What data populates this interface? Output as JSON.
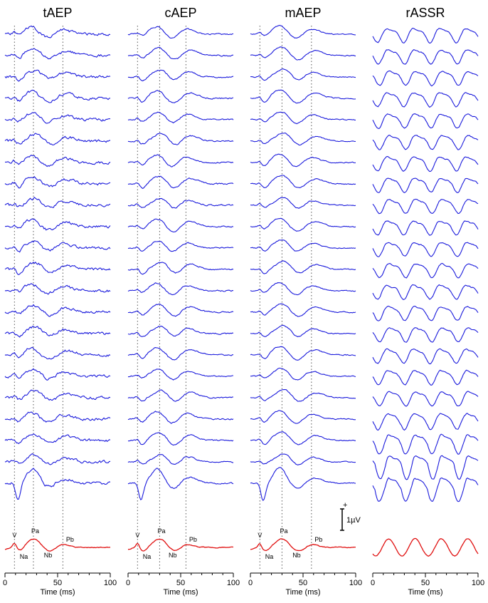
{
  "chart_data": [
    {
      "type": "line",
      "title": "tAEP",
      "xlabel": "Time (ms)",
      "xlim": [
        0,
        100
      ],
      "xticks": [
        "0",
        "50",
        "100"
      ],
      "trace_count": 22,
      "guide_lines_ms": [
        9,
        27,
        55
      ],
      "trace_color": "#1a1adc",
      "average_color": "#e01010",
      "average_labels": [
        "V",
        "Pa",
        "Na",
        "Nb",
        "Pb"
      ]
    },
    {
      "type": "line",
      "title": "cAEP",
      "xlabel": "Time (ms)",
      "xlim": [
        0,
        100
      ],
      "xticks": [
        "0",
        "50",
        "100"
      ],
      "trace_count": 22,
      "guide_lines_ms": [
        9,
        30,
        55
      ],
      "trace_color": "#1a1adc",
      "average_color": "#e01010",
      "average_labels": [
        "V",
        "Pa",
        "Na",
        "Nb",
        "Pb"
      ]
    },
    {
      "type": "line",
      "title": "mAEP",
      "xlabel": "Time (ms)",
      "xlim": [
        0,
        100
      ],
      "xticks": [
        "0",
        "50",
        "100"
      ],
      "trace_count": 22,
      "guide_lines_ms": [
        9,
        30,
        58
      ],
      "trace_color": "#1a1adc",
      "average_color": "#e01010",
      "average_labels": [
        "V",
        "Pa",
        "Na",
        "Nb",
        "Pb"
      ]
    },
    {
      "type": "line",
      "title": "rASSR",
      "xlabel": "Time (ms)",
      "xlim": [
        0,
        100
      ],
      "xticks": [
        "0",
        "50",
        "100"
      ],
      "trace_count": 22,
      "trace_color": "#1a1adc",
      "average_color": "#e01010"
    }
  ],
  "scale_bar": {
    "label": "1µV",
    "plus_sign": "+"
  }
}
